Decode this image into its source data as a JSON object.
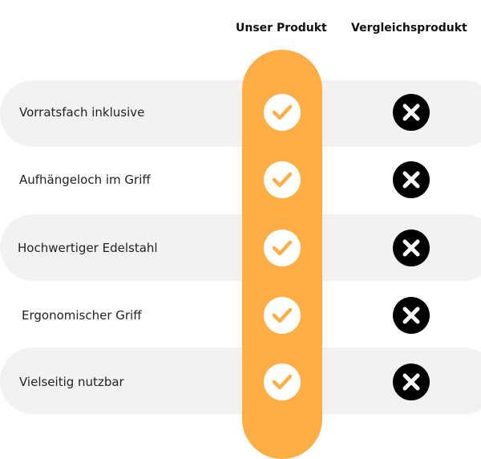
{
  "header": {
    "ours": "Unser Produkt",
    "theirs": "Vergleichsprodukt"
  },
  "colors": {
    "accent": "#ffad45",
    "band": "#f2f2f2",
    "cross": "#000000"
  },
  "rows": [
    {
      "label": "Vorratsfach inklusive",
      "ours": "check-icon",
      "theirs": "cross-icon"
    },
    {
      "label": "Aufhängeloch im Griff",
      "ours": "check-icon",
      "theirs": "cross-icon"
    },
    {
      "label": "Hochwertiger Edelstahl",
      "ours": "check-icon",
      "theirs": "cross-icon"
    },
    {
      "label": "Ergonomischer Griff",
      "ours": "check-icon",
      "theirs": "cross-icon"
    },
    {
      "label": "Vielseitig nutzbar",
      "ours": "check-icon",
      "theirs": "cross-icon"
    }
  ]
}
